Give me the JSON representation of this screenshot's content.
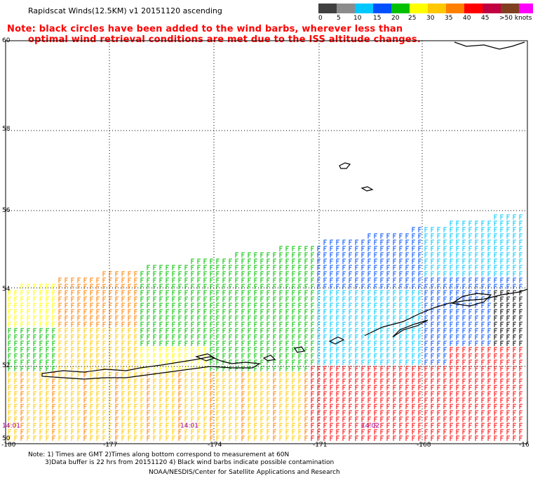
{
  "title": "Rapidscat Winds(12.5KM) v1 20151120 ascending",
  "note_line1": "Note: black circles have been added to the wind barbs, wherever less than",
  "note_line2": "optimal wind retrieval conditions are met due to the ISS altitude changes.",
  "legend": {
    "colors": [
      "#404040",
      "#8c8c8c",
      "#00c8ff",
      "#0050ff",
      "#00c000",
      "#ffff00",
      "#ffc800",
      "#ff8000",
      "#ff0000",
      "#c00040",
      "#804020",
      "#ff00ff",
      "#8000c0"
    ],
    "labels": [
      "0",
      "5",
      "10",
      "15",
      "20",
      "25",
      "30",
      "35",
      "40",
      "45",
      ">50 knots"
    ]
  },
  "lat_labels": [
    "60",
    "58",
    "56",
    "54",
    "52",
    "50"
  ],
  "lon_labels": [
    "-180",
    "-177",
    "-174",
    "-171",
    "-168",
    "-16"
  ],
  "times": [
    "14:01",
    "14:01",
    "14:02"
  ],
  "footnote_line1": "Note: 1) Times are GMT 2)Times along bottom correspond to measurement at 60N",
  "footnote_line2": "3)Data buffer is 22 hrs from 20151120 4) Black wind barbs indicate possible contamination",
  "credit": "NOAA/NESDIS/Center for Satellite Applications and Research"
}
